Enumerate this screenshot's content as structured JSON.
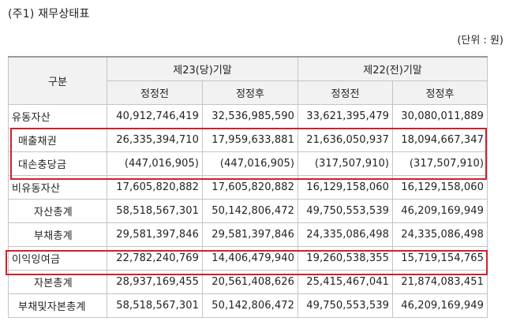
{
  "note_title": "(주1) 재무상태표",
  "unit_label": "(단위 : 원)",
  "header": {
    "gubun": "구분",
    "period_current": "제23(당)기말",
    "period_prior": "제22(전)기말",
    "before": "정정전",
    "after": "정정후"
  },
  "rows": [
    {
      "label": "유동자산",
      "v1": "40,912,746,419",
      "v2": "32,536,985,590",
      "v3": "33,621,395,479",
      "v4": "30,080,011,889"
    },
    {
      "label": "매출채권",
      "v1": "26,335,394,710",
      "v2": "17,959,633,881",
      "v3": "21,636,050,937",
      "v4": "18,094,667,347"
    },
    {
      "label": "대손충당금",
      "v1": "(447,016,905)",
      "v2": "(447,016,905)",
      "v3": "(317,507,910)",
      "v4": "(317,507,910)"
    },
    {
      "label": "비유동자산",
      "v1": "17,605,820,882",
      "v2": "17,605,820,882",
      "v3": "16,129,158,060",
      "v4": "16,129,158,060"
    },
    {
      "label": "자산총계",
      "v1": "58,518,567,301",
      "v2": "50,142,806,472",
      "v3": "49,750,553,539",
      "v4": "46,209,169,949"
    },
    {
      "label": "부채총계",
      "v1": "29,581,397,846",
      "v2": "29,581,397,846",
      "v3": "24,335,086,498",
      "v4": "24,335,086,498"
    },
    {
      "label": "이익잉여금",
      "v1": "22,782,240,769",
      "v2": "14,406,479,940",
      "v3": "19,260,538,355",
      "v4": "15,719,154,765"
    },
    {
      "label": "자본총계",
      "v1": "28,937,169,455",
      "v2": "20,561,408,626",
      "v3": "25,415,467,041",
      "v4": "21,874,083,451"
    },
    {
      "label": "부채및자본총계",
      "v1": "58,518,567,301",
      "v2": "50,142,806,472",
      "v3": "49,750,553,539",
      "v4": "46,209,169,949"
    }
  ],
  "highlight_color": "#d0202e"
}
